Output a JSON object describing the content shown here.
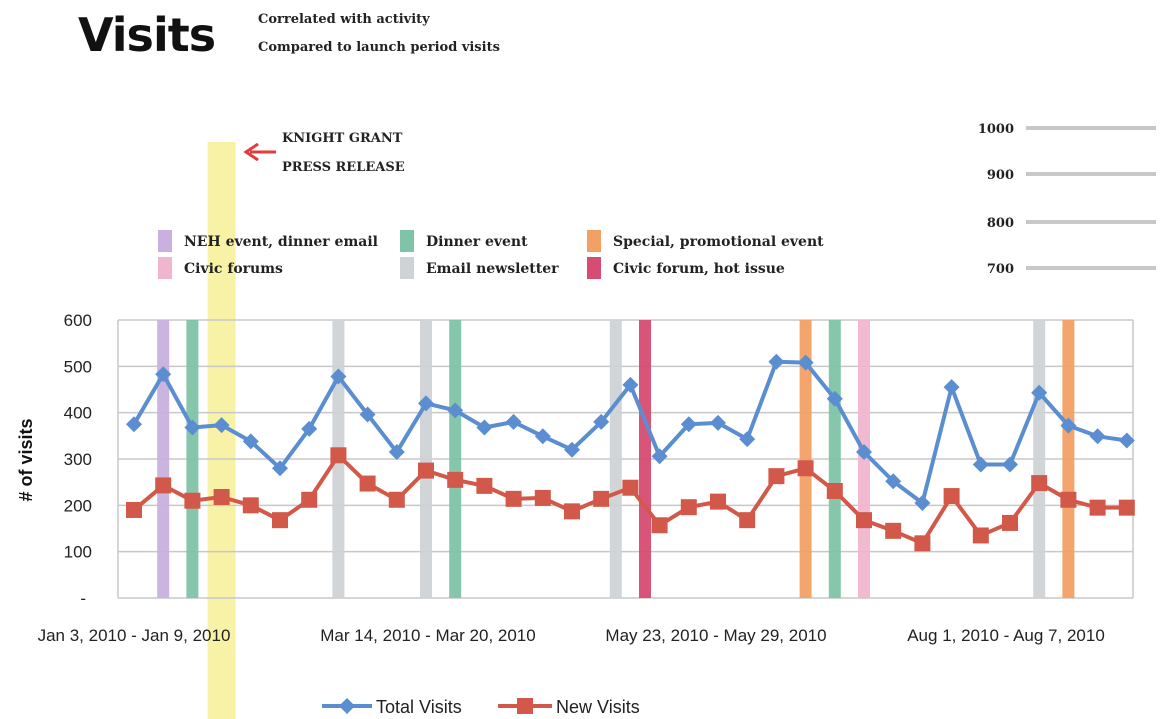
{
  "title": "Visits",
  "subtitle_lines": [
    "Correlated with activity",
    "Compared to launch period visits"
  ],
  "annotation": {
    "line1": "KNIGHT GRANT",
    "line2": "PRESS RELEASE"
  },
  "colors": {
    "total": "#5b8ed0",
    "new": "#d2594a",
    "highlight": "#f7f2a6",
    "neh": "#c9b0de",
    "civic": "#f0b6cf",
    "dinner": "#7fc4a8",
    "newsletter": "#cfd3d6",
    "special": "#f2a065",
    "hot": "#d64c72",
    "arrow": "#e23b3b"
  },
  "legend_events": [
    {
      "label": "NEH event, dinner email",
      "color": "#c9b0de"
    },
    {
      "label": "Civic forums",
      "color": "#f0b6cf"
    },
    {
      "label": "Dinner event",
      "color": "#7fc4a8"
    },
    {
      "label": "Email newsletter",
      "color": "#cfd3d6"
    },
    {
      "label": "Special, promotional event",
      "color": "#f2a065"
    },
    {
      "label": "Civic forum, hot issue",
      "color": "#d64c72"
    }
  ],
  "scale_ticks": [
    1000,
    900,
    800,
    700
  ],
  "chart_data": {
    "type": "line",
    "ylabel": "# of visits",
    "ylim": [
      0,
      600
    ],
    "yticks": [
      600,
      500,
      400,
      300,
      200,
      100
    ],
    "ytick_zero_label": "-",
    "grid": true,
    "legend_position": "bottom",
    "x_tick_labels": [
      {
        "index": 0,
        "label": "Jan 3, 2010 - Jan 9, 2010"
      },
      {
        "index": 10,
        "label": "Mar 14, 2010 - Mar 20, 2010"
      },
      {
        "index": 20,
        "label": "May 23, 2010 - May 29, 2010"
      },
      {
        "index": 30,
        "label": "Aug 1, 2010 - Aug 7, 2010"
      }
    ],
    "series": [
      {
        "name": "Total Visits",
        "marker": "diamond",
        "color": "#5b8ed0",
        "values": [
          375,
          483,
          368,
          373,
          338,
          280,
          365,
          478,
          396,
          315,
          420,
          405,
          368,
          380,
          349,
          320,
          380,
          460,
          306,
          375,
          378,
          343,
          510,
          508,
          430,
          315,
          252,
          205,
          455,
          288,
          288,
          443,
          372,
          349,
          340
        ]
      },
      {
        "name": "New Visits",
        "marker": "square",
        "color": "#d2594a",
        "values": [
          190,
          243,
          210,
          218,
          200,
          168,
          212,
          308,
          247,
          212,
          275,
          255,
          242,
          214,
          216,
          187,
          214,
          238,
          157,
          196,
          208,
          168,
          263,
          280,
          231,
          168,
          145,
          118,
          220,
          135,
          162,
          248,
          212,
          195,
          195
        ]
      }
    ],
    "event_bars": [
      {
        "index": 1.0,
        "type": "neh"
      },
      {
        "index": 2.0,
        "type": "dinner"
      },
      {
        "index": 7.0,
        "type": "newsletter"
      },
      {
        "index": 10.0,
        "type": "newsletter"
      },
      {
        "index": 11.0,
        "type": "dinner"
      },
      {
        "index": 16.5,
        "type": "newsletter"
      },
      {
        "index": 17.5,
        "type": "hot"
      },
      {
        "index": 23.0,
        "type": "special"
      },
      {
        "index": 24.0,
        "type": "dinner"
      },
      {
        "index": 25.0,
        "type": "civic"
      },
      {
        "index": 31.0,
        "type": "newsletter"
      },
      {
        "index": 32.0,
        "type": "special"
      }
    ],
    "highlight_index": 3.0
  }
}
